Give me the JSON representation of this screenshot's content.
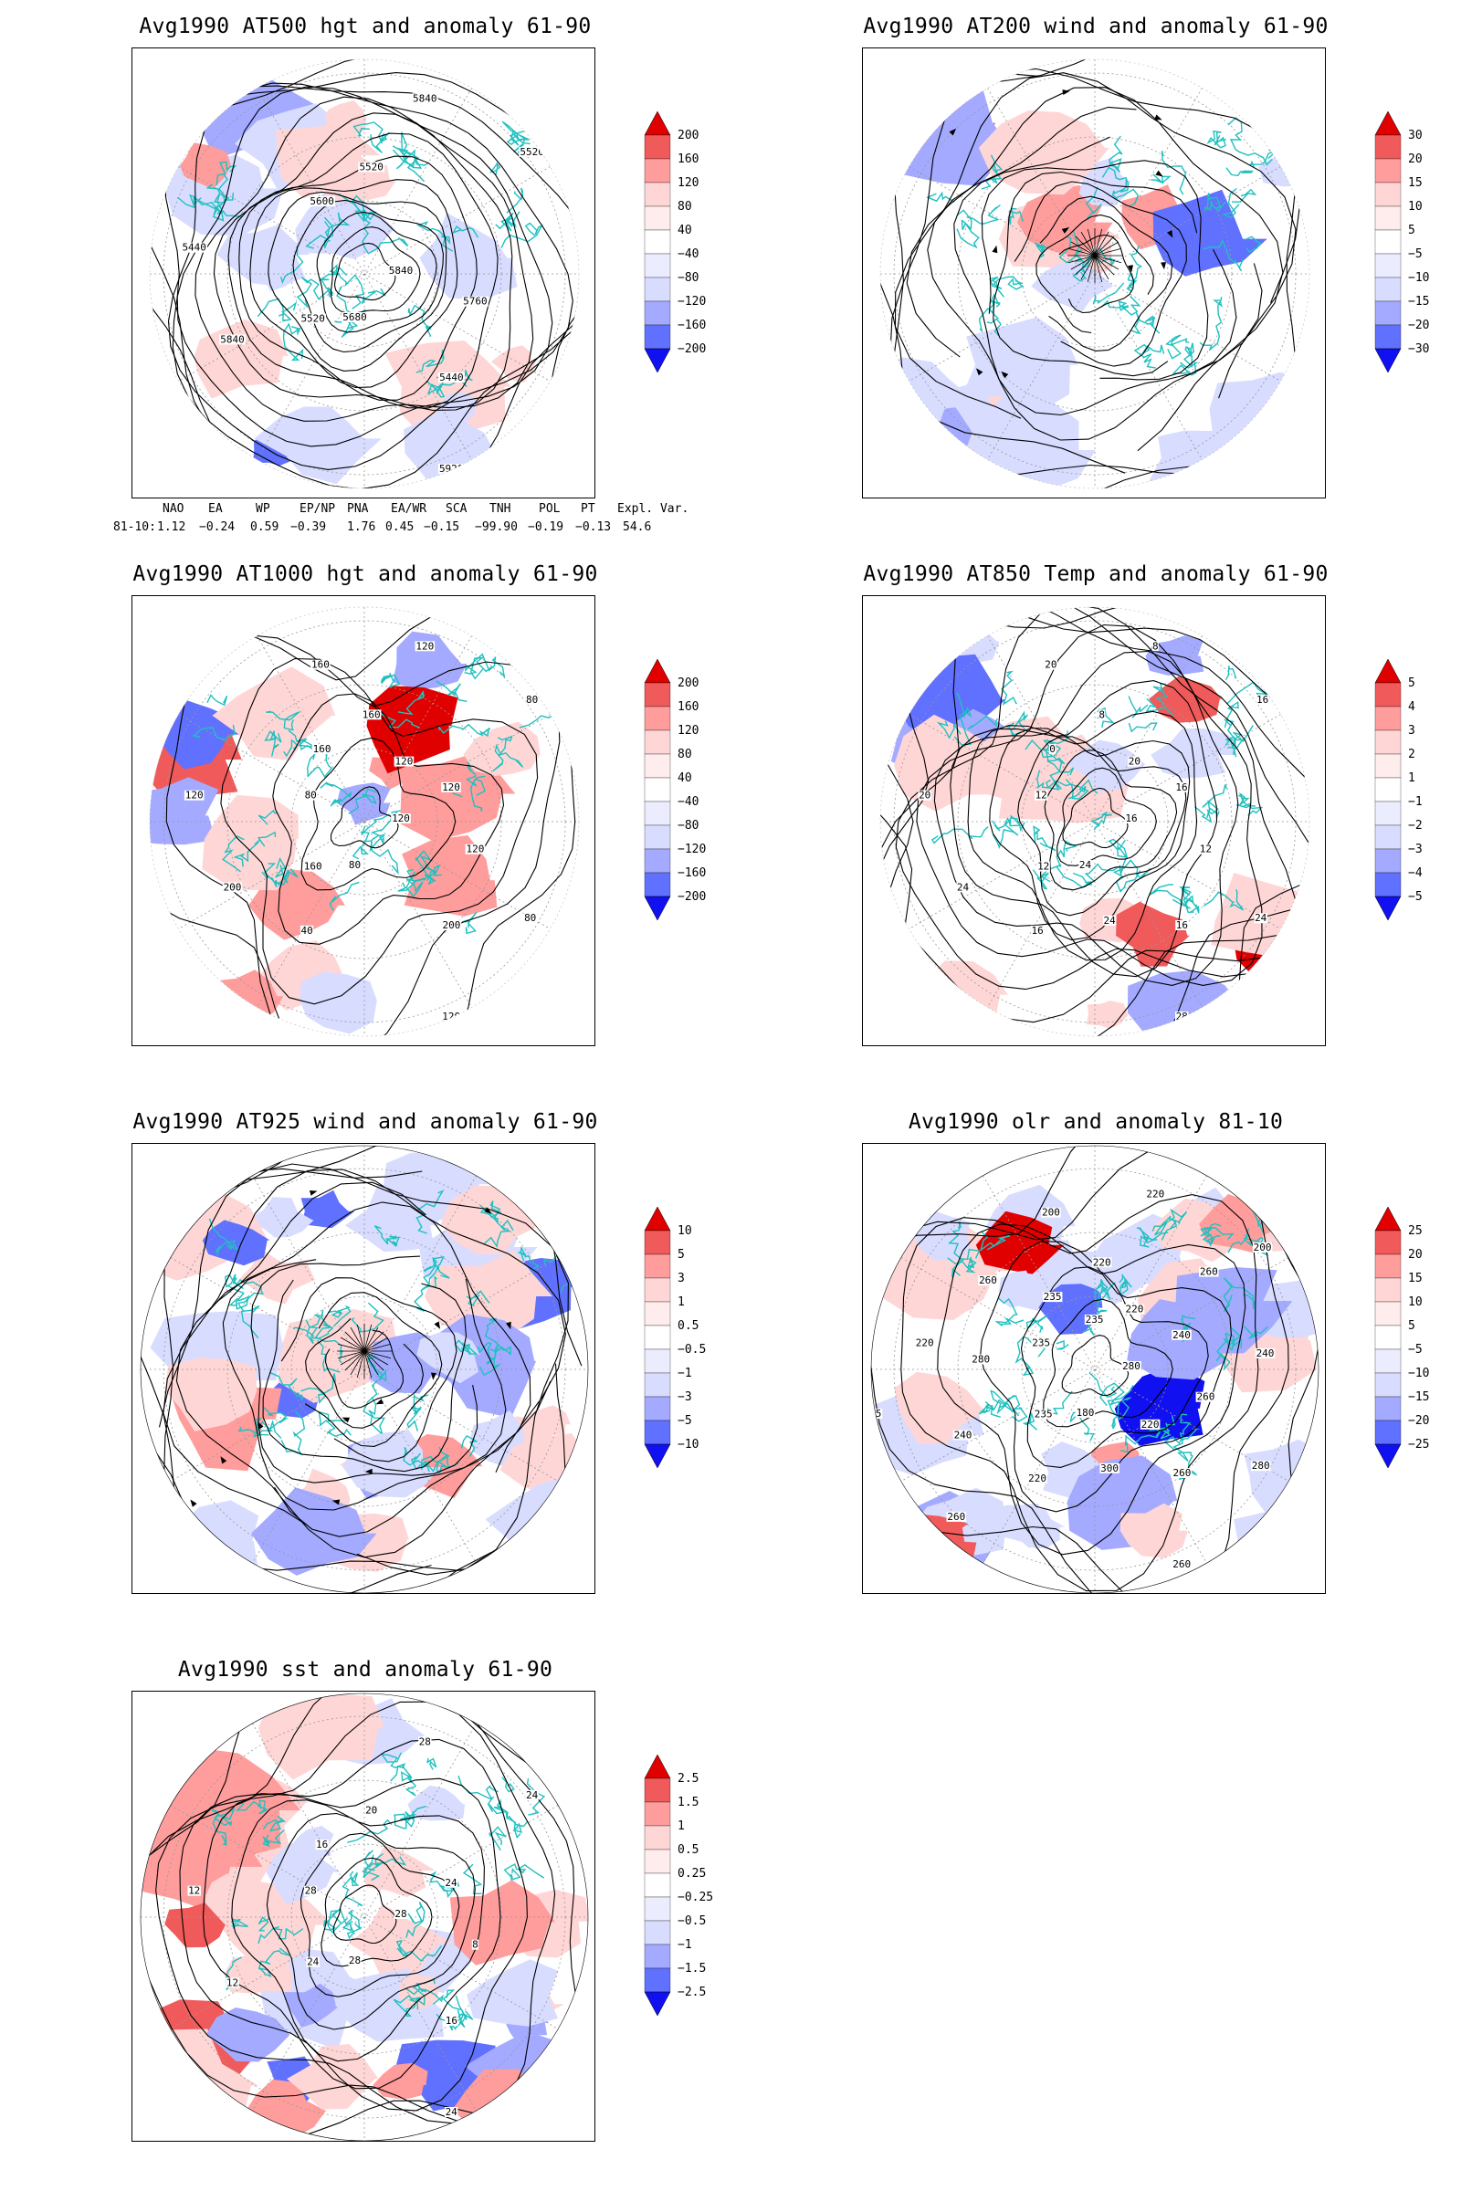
{
  "panels": [
    {
      "id": "p1",
      "title": "Avg1990 AT500 hgt and anomaly 61-90",
      "kind": "hgt500",
      "colorbar": [
        "200",
        "160",
        "120",
        "80",
        "40",
        "−40",
        "−80",
        "−120",
        "−160",
        "−200"
      ],
      "contour_labels": [
        "5840",
        "5520",
        "5520",
        "5440",
        "5440",
        "5520",
        "5680",
        "5600",
        "5760",
        "5840",
        "5840",
        "5920"
      ]
    },
    {
      "id": "p2",
      "title": "Avg1990 AT200 wind and anomaly 61-90",
      "kind": "wind200",
      "colorbar": [
        "30",
        "20",
        "15",
        "10",
        "5",
        "−5",
        "−10",
        "−15",
        "−20",
        "−30"
      ],
      "contour_labels": []
    },
    {
      "id": "p3",
      "title": "Avg1990 AT1000 hgt and anomaly 61-90",
      "kind": "hgt1000",
      "colorbar": [
        "200",
        "160",
        "120",
        "80",
        "40",
        "−40",
        "−80",
        "−120",
        "−160",
        "−200"
      ],
      "contour_labels": [
        "120",
        "160",
        "160",
        "200",
        "120",
        "80",
        "80",
        "160",
        "120",
        "200",
        "120",
        "120",
        "80",
        "120",
        "40",
        "160",
        "80",
        "120",
        "120"
      ]
    },
    {
      "id": "p4",
      "title": "Avg1990 AT850 Temp and anomaly 61-90",
      "kind": "t850",
      "colorbar": [
        "5",
        "4",
        "3",
        "2",
        "1",
        "−1",
        "−2",
        "−3",
        "−4",
        "−5"
      ],
      "contour_labels": [
        "16",
        "12",
        "8",
        "16",
        "20",
        "16",
        "24",
        "0",
        "12",
        "24",
        "8",
        "28",
        "12",
        "16",
        "16",
        "20",
        "24",
        "16",
        "20",
        "24"
      ]
    },
    {
      "id": "p5",
      "title": "Avg1990 AT925 wind and anomaly 61-90",
      "kind": "wind925",
      "colorbar": [
        "10",
        "5",
        "3",
        "1",
        "0.5",
        "−0.5",
        "−1",
        "−3",
        "−5",
        "−10"
      ],
      "contour_labels": []
    },
    {
      "id": "p6",
      "title": "Avg1990 olr and anomaly 81-10",
      "kind": "olr",
      "colorbar": [
        "25",
        "20",
        "15",
        "10",
        "5",
        "−5",
        "−10",
        "−15",
        "−20",
        "−25"
      ],
      "contour_labels": [
        "280",
        "235",
        "220",
        "260",
        "220",
        "200",
        "180",
        "235",
        "260",
        "240",
        "220",
        "260",
        "235",
        "240",
        "220",
        "200",
        "280",
        "235",
        "220",
        "300",
        "260",
        "240",
        "260",
        "235",
        "220",
        "280",
        "260"
      ]
    },
    {
      "id": "p7",
      "title": "Avg1990 sst and anomaly 61-90",
      "kind": "sst",
      "colorbar": [
        "2.5",
        "1.5",
        "1",
        "0.5",
        "0.25",
        "−0.25",
        "−0.5",
        "−1",
        "−1.5",
        "−2.5"
      ],
      "contour_labels": [
        "28",
        "24",
        "20",
        "16",
        "12",
        "24",
        "28",
        "16",
        "8",
        "12",
        "28",
        "24",
        "28",
        "24"
      ]
    }
  ],
  "indices": {
    "header": [
      "NAO",
      "EA",
      "WP",
      "EP/NP",
      "PNA",
      "EA/WR",
      "SCA",
      "TNH",
      "POL",
      "PT",
      "Expl. Var."
    ],
    "row_label": "81-10:",
    "values": [
      "1.12",
      "−0.24",
      "0.59",
      "−0.39",
      "1.76",
      "0.45",
      "−0.15",
      "−99.90",
      "−0.19",
      "−0.13",
      "54.6"
    ]
  },
  "colors": {
    "positive_strong": "#e00000",
    "negative_strong": "#1010f0",
    "coast": "#20c0c0",
    "contour": "#000000"
  }
}
